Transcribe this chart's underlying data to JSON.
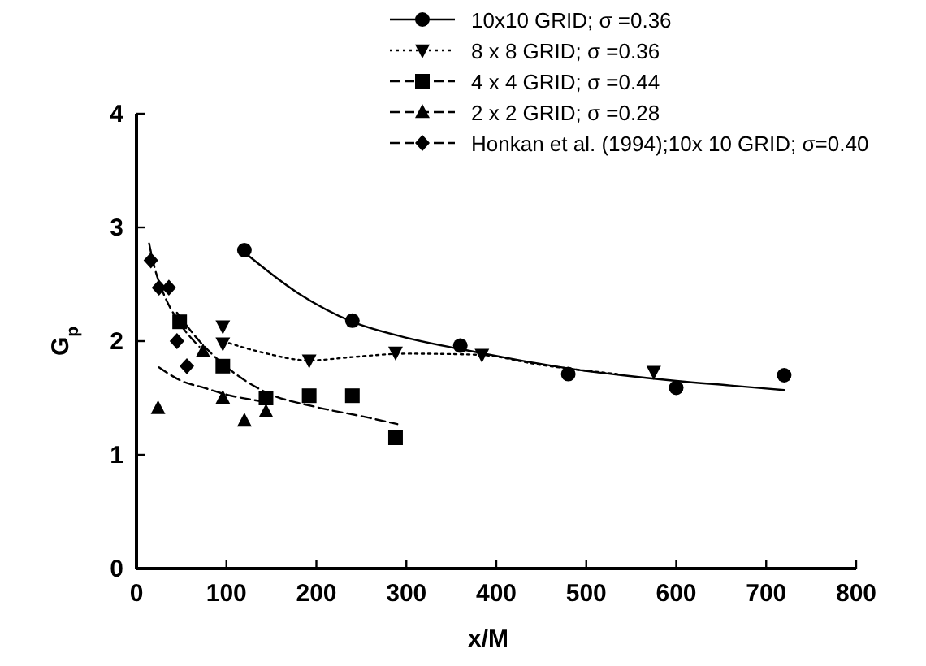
{
  "chart_data": {
    "type": "scatter",
    "xlabel": "x/M",
    "ylabel": "G$_{p}$",
    "xlim": [
      0,
      800
    ],
    "ylim": [
      0,
      4
    ],
    "xticks": [
      0,
      100,
      200,
      300,
      400,
      500,
      600,
      700,
      800
    ],
    "yticks": [
      0,
      1,
      2,
      3,
      4
    ],
    "legend": "top",
    "grid": false,
    "series": [
      {
        "name": "10x10 GRID; σ =0.36",
        "marker": "circle",
        "color": "#000000",
        "x": [
          120,
          240,
          360,
          480,
          600,
          720
        ],
        "values": [
          2.8,
          2.18,
          1.96,
          1.71,
          1.59,
          1.7
        ]
      },
      {
        "type": "line",
        "line_style": "solid",
        "marker": "none",
        "color": "#000000",
        "x": [
          120,
          180,
          240,
          300,
          360,
          420,
          480,
          540,
          600,
          660,
          720
        ],
        "values": [
          2.78,
          2.42,
          2.17,
          2.03,
          1.93,
          1.84,
          1.76,
          1.7,
          1.65,
          1.61,
          1.57
        ]
      },
      {
        "name": "8 x 8 GRID; σ =0.36",
        "marker": "triangle-down",
        "color": "#000000",
        "x": [
          96,
          96,
          192,
          288,
          384,
          575
        ],
        "values": [
          2.13,
          1.98,
          1.83,
          1.9,
          1.88,
          1.73
        ]
      },
      {
        "type": "line",
        "line_style": "dotted",
        "marker": "none",
        "color": "#000000",
        "x": [
          96,
          140,
          192,
          240,
          300,
          380,
          450,
          535
        ],
        "values": [
          2.0,
          1.9,
          1.83,
          1.86,
          1.89,
          1.88,
          1.79,
          1.71
        ]
      },
      {
        "name": "4 x 4 GRID; σ =0.44",
        "marker": "square",
        "color": "#000000",
        "x": [
          48,
          96,
          144,
          192,
          240,
          288
        ],
        "values": [
          2.17,
          1.78,
          1.5,
          1.52,
          1.52,
          1.15
        ]
      },
      {
        "type": "line",
        "line_style": "dashed",
        "marker": "none",
        "color": "#000000",
        "x": [
          45,
          70,
          96,
          144,
          200,
          250,
          290
        ],
        "values": [
          2.25,
          2.0,
          1.8,
          1.55,
          1.42,
          1.34,
          1.27
        ]
      },
      {
        "name": "2 x 2 GRID; σ =0.28",
        "marker": "triangle",
        "color": "#000000",
        "x": [
          24,
          74,
          96,
          120,
          144
        ],
        "values": [
          1.41,
          1.91,
          1.5,
          1.3,
          1.38
        ]
      },
      {
        "type": "line",
        "line_style": "dashed",
        "marker": "none",
        "color": "#000000",
        "x": [
          25,
          50,
          75,
          100,
          140
        ],
        "values": [
          1.77,
          1.65,
          1.59,
          1.53,
          1.47
        ]
      },
      {
        "name": "Honkan et al. (1994);10x 10 GRID; σ=0.40",
        "marker": "diamond",
        "color": "#000000",
        "x": [
          16,
          25,
          36,
          45,
          56
        ],
        "values": [
          2.71,
          2.47,
          2.47,
          2.0,
          1.78
        ]
      },
      {
        "type": "line",
        "line_style": "dashed",
        "marker": "none",
        "color": "#000000",
        "x": [
          14,
          20,
          30,
          47,
          70
        ],
        "values": [
          2.86,
          2.65,
          2.42,
          2.17,
          1.95
        ]
      }
    ]
  }
}
